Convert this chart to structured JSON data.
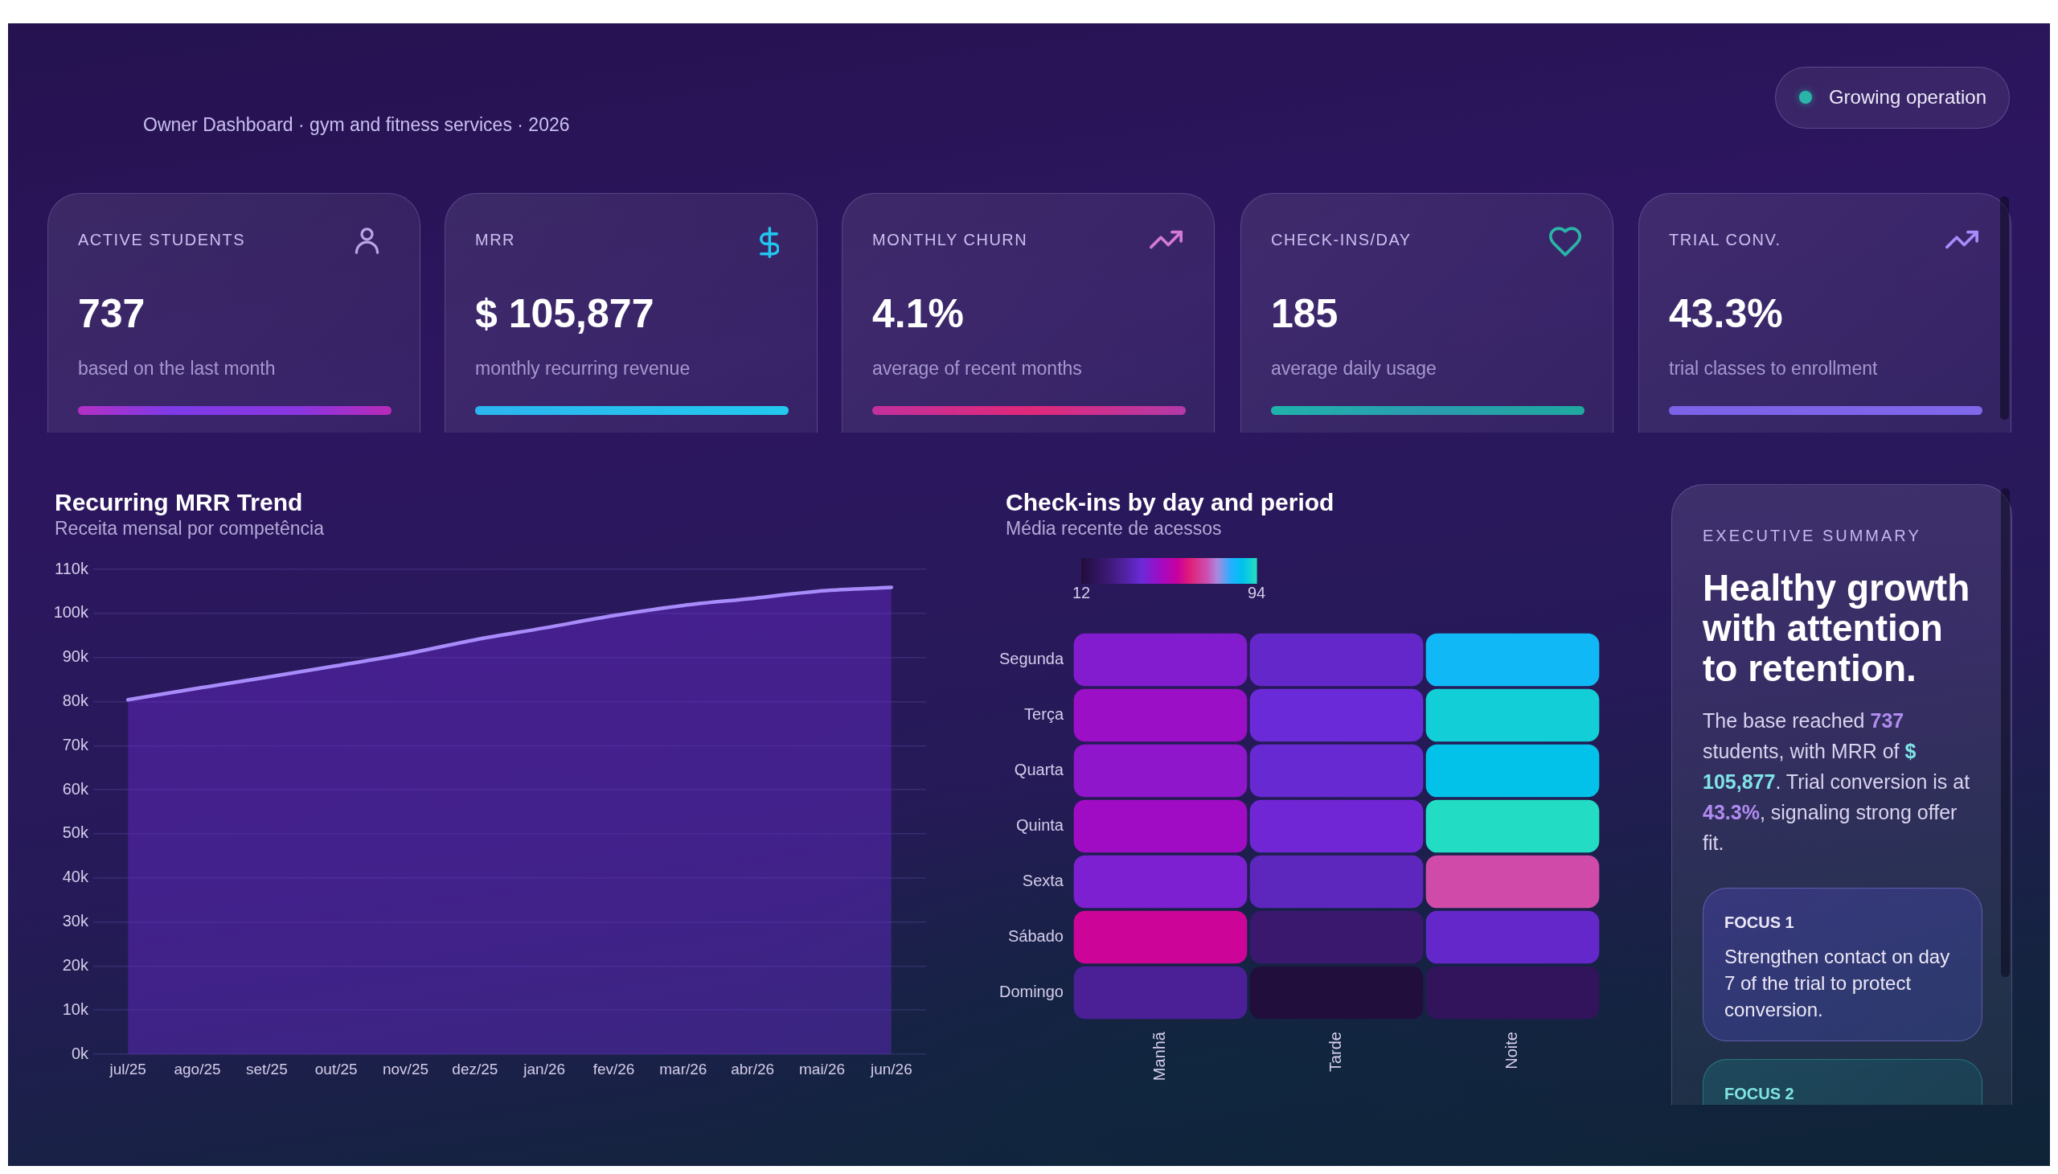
{
  "chart_data": [
    {
      "type": "other",
      "subtitle": "Owner Dashboard · gym and fitness services · 2026",
      "annotations": [
        "Growing operation"
      ]
    },
    {
      "type": "other",
      "title": "ACTIVE STUDENTS",
      "annotations": [
        "737",
        "based on the last month"
      ]
    },
    {
      "type": "other",
      "title": "MRR",
      "annotations": [
        "$ 105,877",
        "monthly recurring revenue"
      ]
    },
    {
      "type": "other",
      "title": "MONTHLY CHURN",
      "annotations": [
        "4.1%",
        "average of recent months"
      ]
    },
    {
      "type": "other",
      "title": "CHECK-INS/DAY",
      "annotations": [
        "185",
        "average daily usage"
      ]
    },
    {
      "type": "other",
      "title": "TRIAL CONV.",
      "annotations": [
        "43.3%",
        "trial classes to enrollment"
      ]
    },
    {
      "type": "area",
      "title": "Recurring MRR Trend",
      "subtitle": "Receita mensal por competência",
      "categories": [
        "jul/25",
        "ago/25",
        "set/25",
        "out/25",
        "nov/25",
        "dez/25",
        "jan/26",
        "fev/26",
        "mar/26",
        "abr/26",
        "mai/26",
        "jun/26"
      ],
      "values": [
        80400,
        83000,
        85500,
        88100,
        90800,
        94000,
        96700,
        99500,
        101800,
        103400,
        105100,
        105900
      ],
      "color": "#a78bfa",
      "ylim": [
        0,
        110000
      ],
      "yticks": [
        {
          "value": 0,
          "label": "0k"
        },
        {
          "value": 10000,
          "label": "10k"
        },
        {
          "value": 20000,
          "label": "20k"
        },
        {
          "value": 30000,
          "label": "30k"
        },
        {
          "value": 40000,
          "label": "40k"
        },
        {
          "value": 50000,
          "label": "50k"
        },
        {
          "value": 60000,
          "label": "60k"
        },
        {
          "value": 70000,
          "label": "70k"
        },
        {
          "value": 80000,
          "label": "80k"
        },
        {
          "value": 90000,
          "label": "90k"
        },
        {
          "value": 100000,
          "label": "100k"
        },
        {
          "value": 110000,
          "label": "110k"
        }
      ],
      "grid": "y"
    },
    {
      "type": "heatmap",
      "title": "Check-ins by day and period",
      "subtitle": "Média recente de acessos",
      "categories": [
        "Manhã",
        "Tarde",
        "Noite"
      ],
      "y_categories": [
        "Segunda",
        "Terça",
        "Quarta",
        "Quinta",
        "Sexta",
        "Sábado",
        "Domingo"
      ],
      "cells": [
        [
          44,
          38,
          85
        ],
        [
          48,
          40,
          91
        ],
        [
          46,
          39,
          88
        ],
        [
          49,
          41,
          94
        ],
        [
          43,
          36,
          70
        ],
        [
          58,
          23,
          38
        ],
        [
          30,
          12,
          19
        ]
      ],
      "clim": [
        12,
        94
      ],
      "cticks": [
        12,
        94
      ]
    },
    {
      "type": "other",
      "title": "EXECUTIVE SUMMARY",
      "subtitle": "Healthy growth with attention to retention.",
      "annotations": [
        "The base reached 737 students, with MRR of $ 105,877. Trial conversion is at 43.3%, signaling strong offer fit.",
        "FOCUS 1",
        "Strengthen contact on day 7 of the trial to protect conversion.",
        "FOCUS 2"
      ]
    }
  ]
}
